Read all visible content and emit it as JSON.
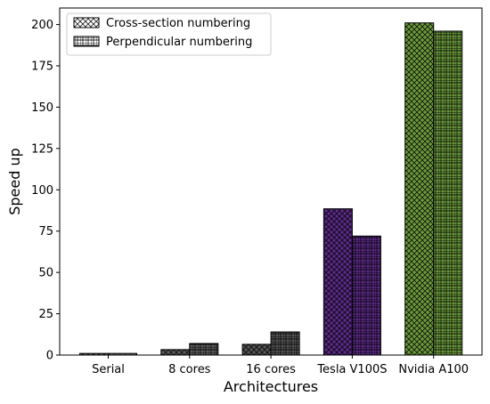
{
  "chart_data": {
    "type": "bar",
    "title": "",
    "xlabel": "Architectures",
    "ylabel": "Speed up",
    "categories": [
      "Serial",
      "8 cores",
      "16 cores",
      "Tesla V100S",
      "Nvidia A100"
    ],
    "series": [
      {
        "name": "Cross-section numbering",
        "hatch": "crosshatch",
        "values": [
          1,
          3.3,
          6.5,
          88.5,
          201
        ]
      },
      {
        "name": "Perpendicular numbering",
        "hatch": "grid",
        "values": [
          1,
          7,
          14,
          72,
          196
        ]
      }
    ],
    "category_colors": [
      "#7f7f7f",
      "#5c5c5c",
      "#555555",
      "#5b2a86",
      "#6b9a3c"
    ],
    "ylim": [
      0,
      210
    ],
    "yticks": [
      0,
      25,
      50,
      75,
      100,
      125,
      150,
      175,
      200
    ],
    "grid": false,
    "legend_position": "top-left"
  }
}
